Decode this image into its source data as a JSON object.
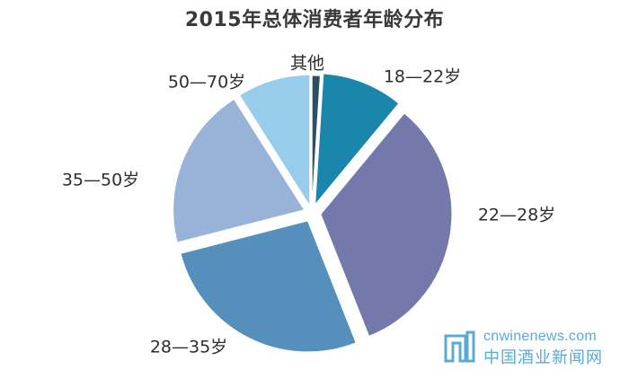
{
  "chart_data": {
    "type": "pie",
    "title": "2015年总体消费者年龄分布",
    "categories": [
      "其他",
      "18—22岁",
      "22—28岁",
      "28—35岁",
      "35—50岁",
      "50—70岁"
    ],
    "values": [
      1,
      10,
      33,
      27,
      20,
      9
    ],
    "colors": [
      "#2c4f63",
      "#1b86ab",
      "#7479ab",
      "#5490bb",
      "#97b4d8",
      "#97cdea"
    ],
    "legend": "labels beside slices"
  },
  "watermark": {
    "site": "cnwinenews.com",
    "name": "中国酒业新闻网"
  }
}
